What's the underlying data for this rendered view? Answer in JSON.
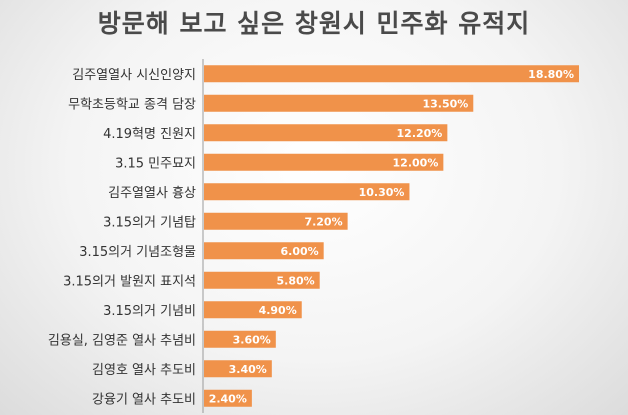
{
  "chart_data": {
    "type": "bar",
    "orientation": "horizontal",
    "title": "방문해 보고 싶은 창원시 민주화 유적지",
    "categories": [
      "김주열열사 시신인양지",
      "무학초등학교 종격 담장",
      "4.19혁명 진원지",
      "3.15 민주묘지",
      "김주열열사 흉상",
      "3.15의거 기념탑",
      "3.15의거 기념조형물",
      "3.15의거 발원지 표지석",
      "3.15의거 기념비",
      "김용실, 김영준 열사 추념비",
      "김영호 열사 추도비",
      "강융기 열사 추도비"
    ],
    "values": [
      18.8,
      13.5,
      12.2,
      12.0,
      10.3,
      7.2,
      6.0,
      5.8,
      4.9,
      3.6,
      3.4,
      2.4
    ],
    "value_labels": [
      "18.80%",
      "13.50%",
      "12.20%",
      "12.00%",
      "10.30%",
      "7.20%",
      "6.00%",
      "5.80%",
      "4.90%",
      "3.60%",
      "3.40%",
      "2.40%"
    ],
    "bar_color": "#F0924A",
    "axis_color": "#9a9a9a",
    "grid": false,
    "legend": "none"
  }
}
